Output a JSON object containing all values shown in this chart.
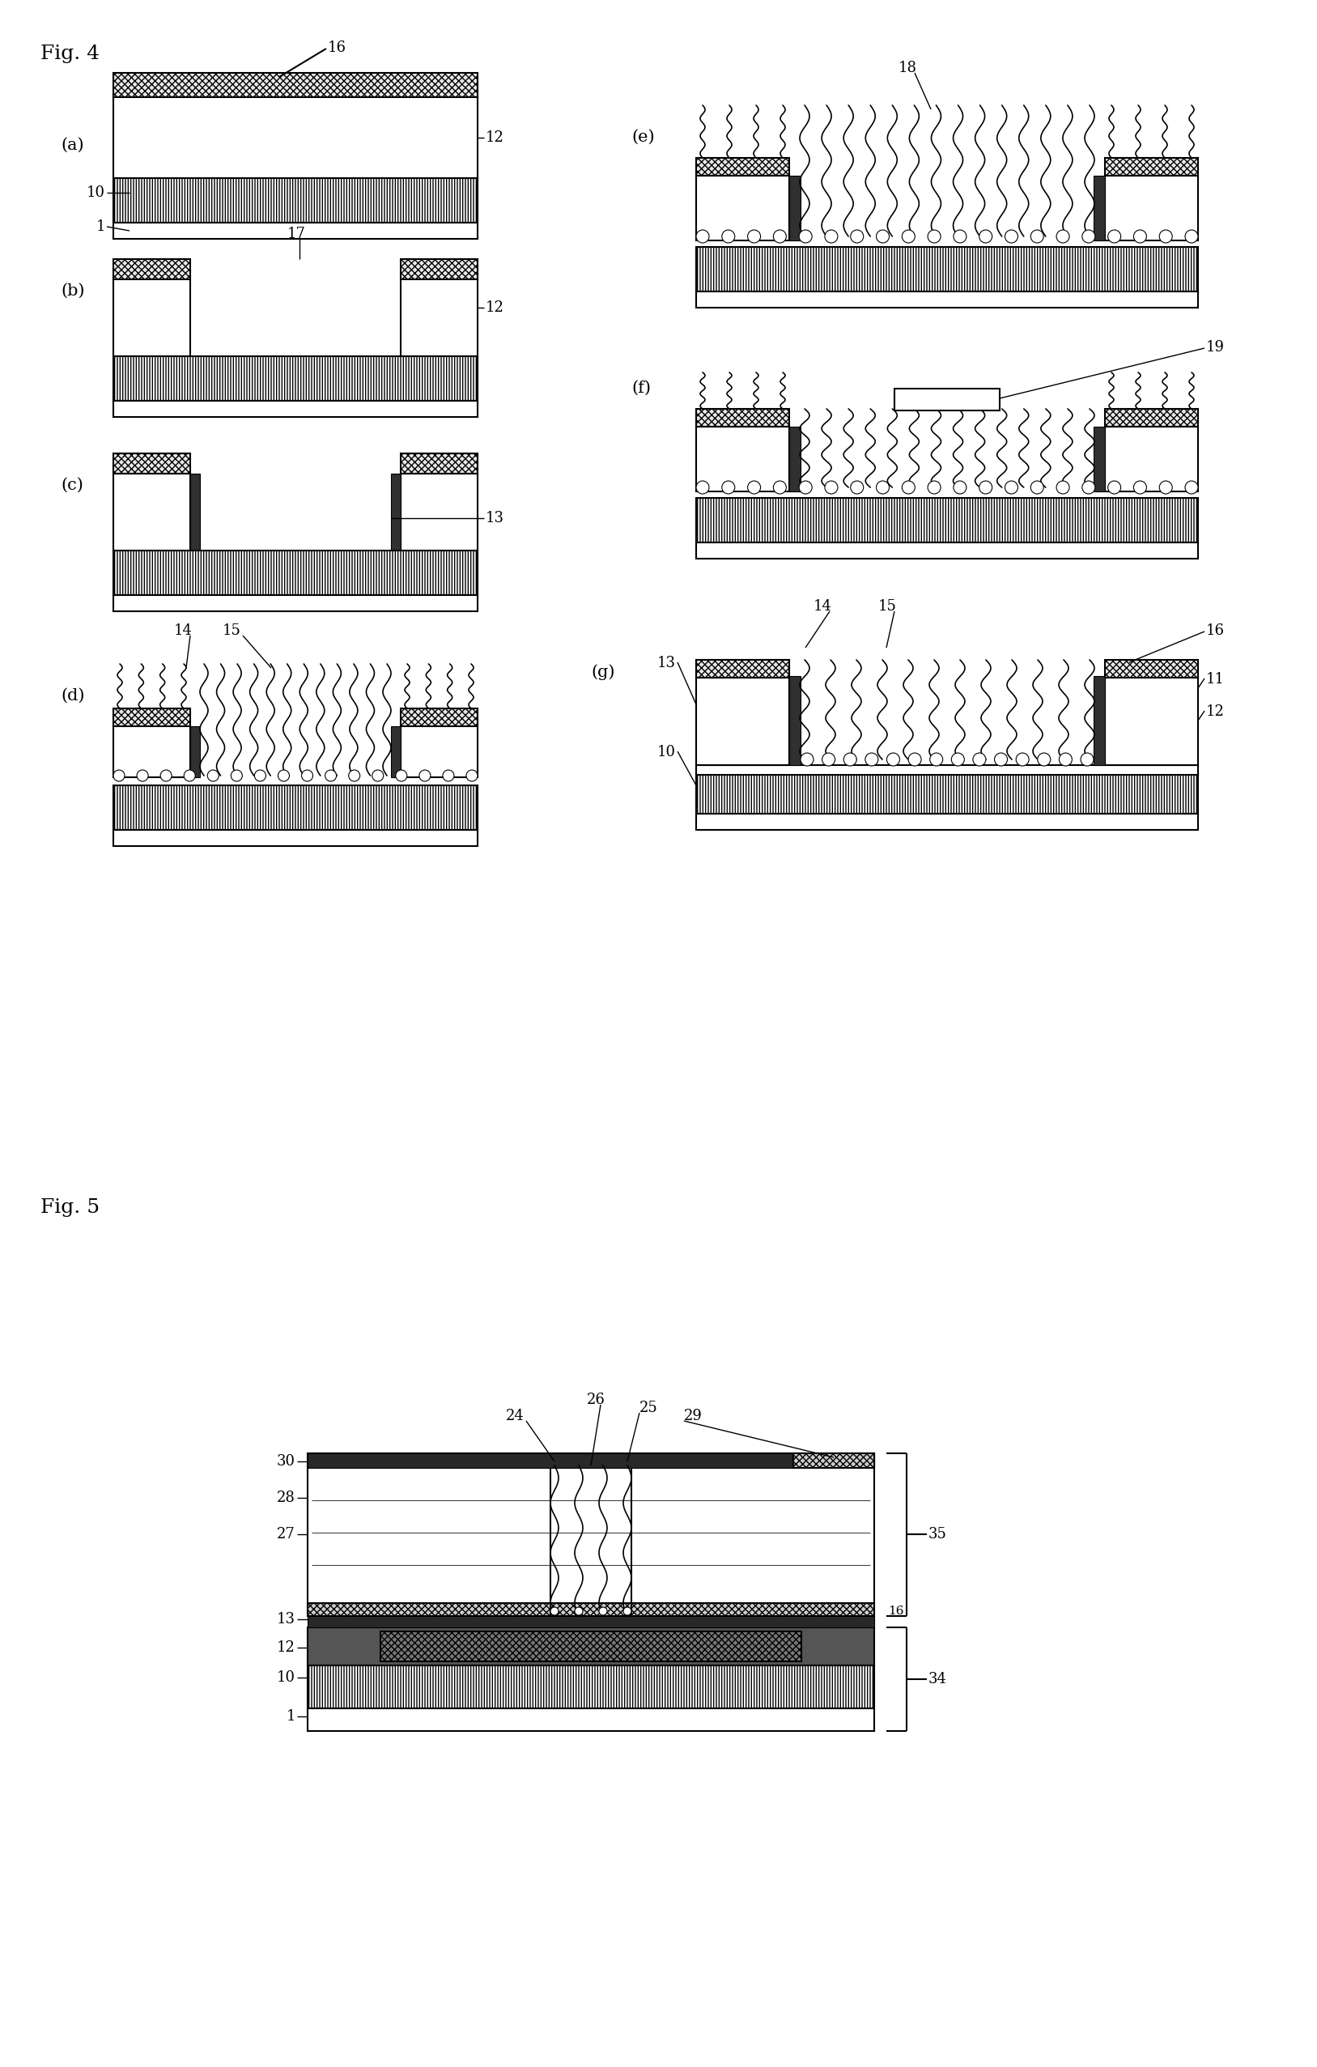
{
  "bg": "#ffffff",
  "lc": "#000000",
  "fig4_title": "Fig. 4",
  "fig5_title": "Fig. 5",
  "panels_left": [
    "(a)",
    "(b)",
    "(c)",
    "(d)"
  ],
  "panels_right": [
    "(e)",
    "(f)",
    "(g)"
  ]
}
